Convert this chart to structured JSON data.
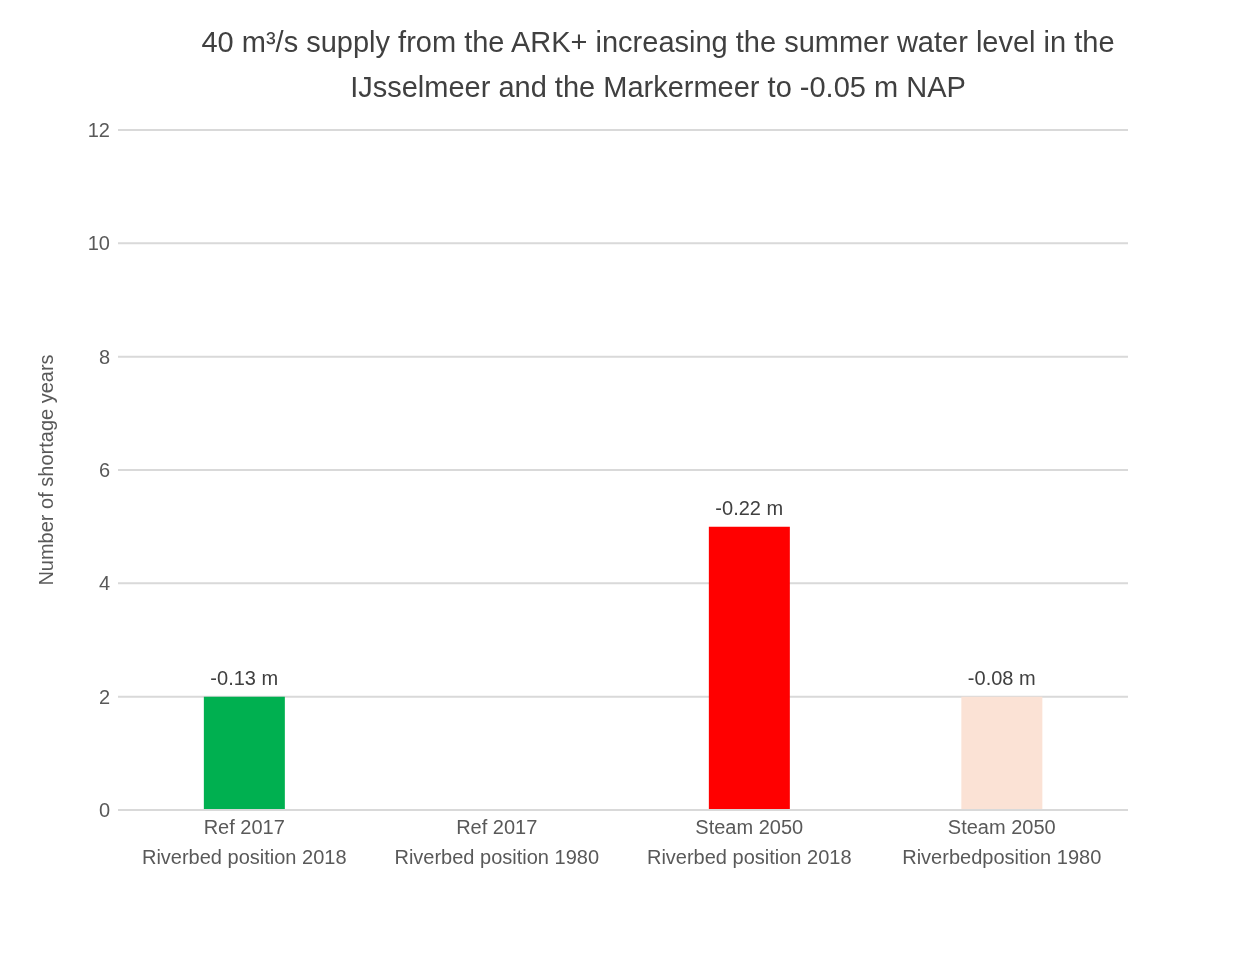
{
  "chart_data": {
    "type": "bar",
    "title": "40 m³/s supply from the ARK+ increasing the summer water level in the IJsselmeer and the Markermeer to -0.05 m NAP",
    "ylabel": "Number of shortage years",
    "categories": [
      "Ref 2017\nRiverbed position 2018",
      "Ref 2017\nRiverbed position 1980",
      "Steam 2050\nRiverbed position 2018",
      "Steam 2050\nRiverbedposition 1980"
    ],
    "values": [
      2,
      0,
      5,
      2
    ],
    "colors": [
      "#00b050",
      "#00b050",
      "#ff0000",
      "#fbe2d5"
    ],
    "annotations": [
      {
        "text": "-0.13 m",
        "x": "Ref 2017\nRiverbed position 2018",
        "y": 2
      },
      {
        "text": "-0.22 m",
        "x": "Steam 2050\nRiverbed position 2018",
        "y": 5
      },
      {
        "text": "-0.08 m",
        "x": "Steam 2050\nRiverbedposition 1980",
        "y": 2
      }
    ],
    "ylim": [
      0,
      12
    ],
    "yticks": [
      0,
      2,
      4,
      6,
      8,
      10,
      12
    ],
    "grid": "y"
  }
}
